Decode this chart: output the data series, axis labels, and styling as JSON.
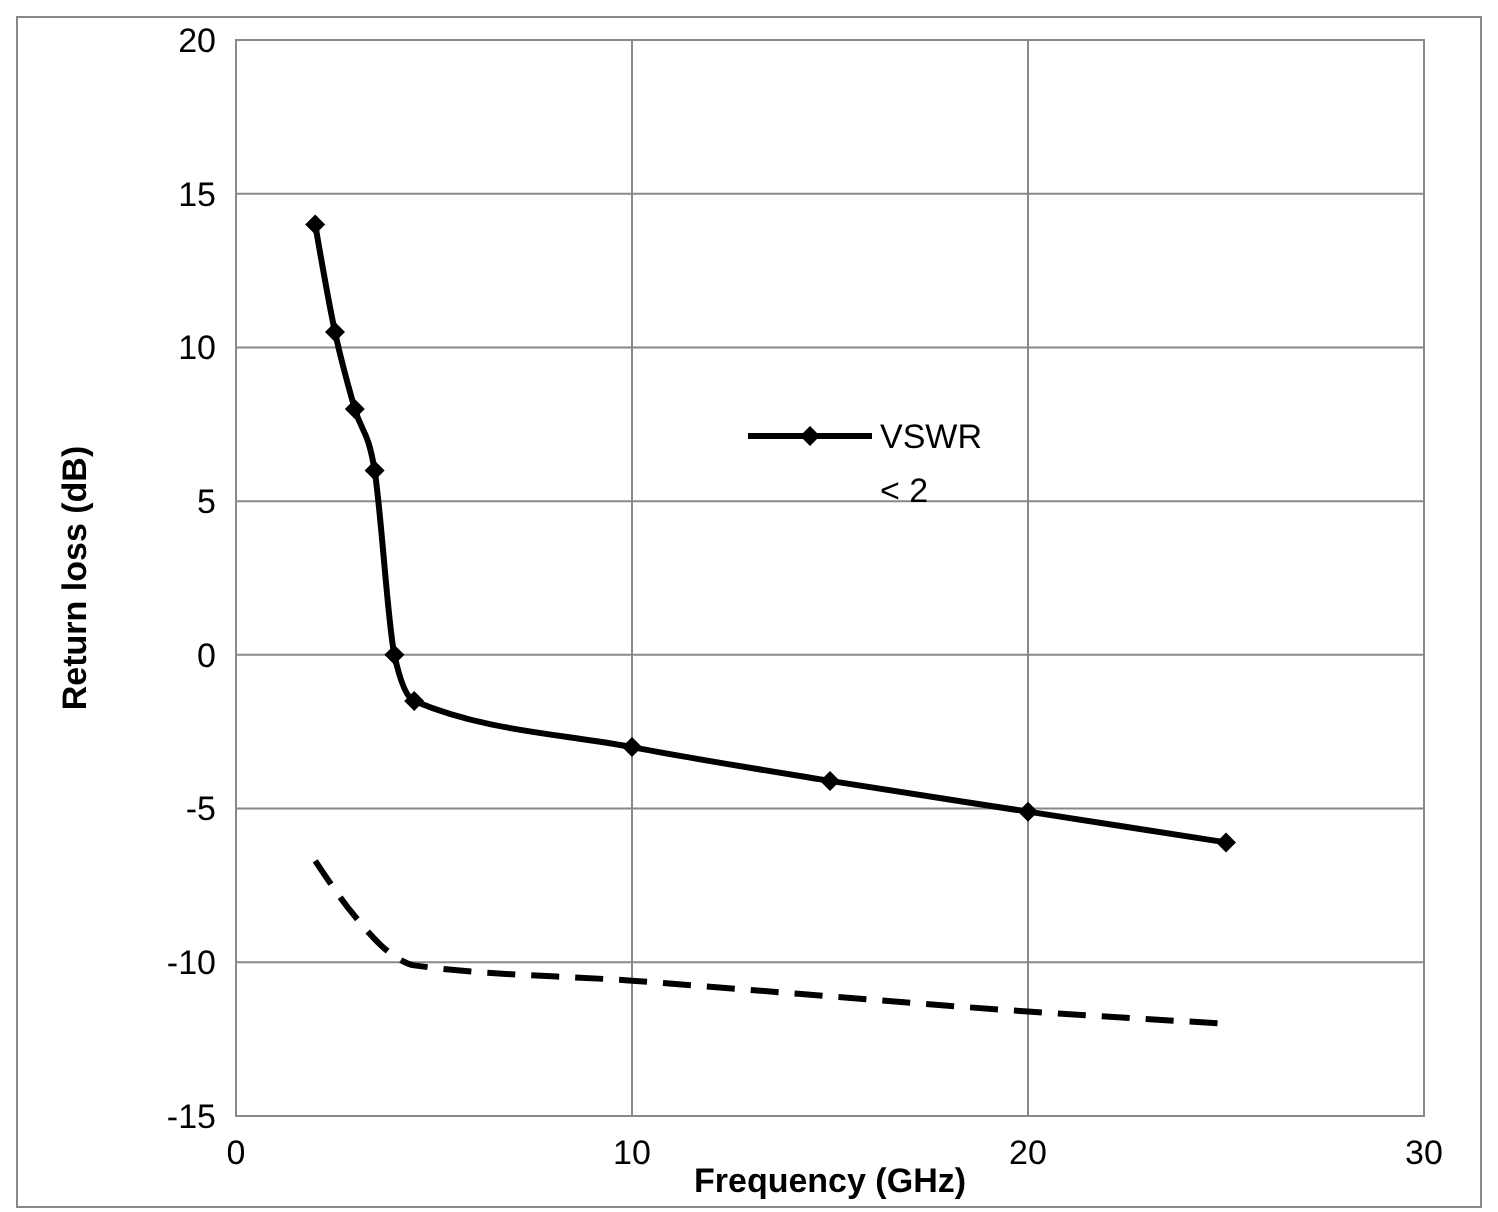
{
  "chart_data": {
    "type": "line",
    "xlabel": "Frequency (GHz)",
    "ylabel": "Return loss (dB)",
    "xlim": [
      0,
      30
    ],
    "xticks": [
      0,
      10,
      20,
      30
    ],
    "ylim": [
      -15,
      20
    ],
    "yticks": [
      -15,
      -10,
      -5,
      0,
      5,
      10,
      15,
      20
    ],
    "grid": true,
    "legend": "right",
    "series": [
      {
        "name": "VSWR < 2",
        "color": "#000000",
        "marker": "diamond",
        "line_style": "solid",
        "x": [
          2,
          2.5,
          3,
          3.5,
          4,
          4.5,
          10,
          15,
          20,
          25
        ],
        "values": [
          14,
          10.5,
          8,
          6,
          0,
          -1.5,
          -3,
          -4.1,
          -5.1,
          -6.1
        ]
      },
      {
        "color": "#000000",
        "marker": "none",
        "line_style": "dashed",
        "x": [
          2,
          3,
          4,
          4.5,
          10,
          20,
          25
        ],
        "values": [
          -6.7,
          -8.5,
          -9.8,
          -10.1,
          -10.6,
          -11.6,
          -12
        ]
      }
    ]
  }
}
